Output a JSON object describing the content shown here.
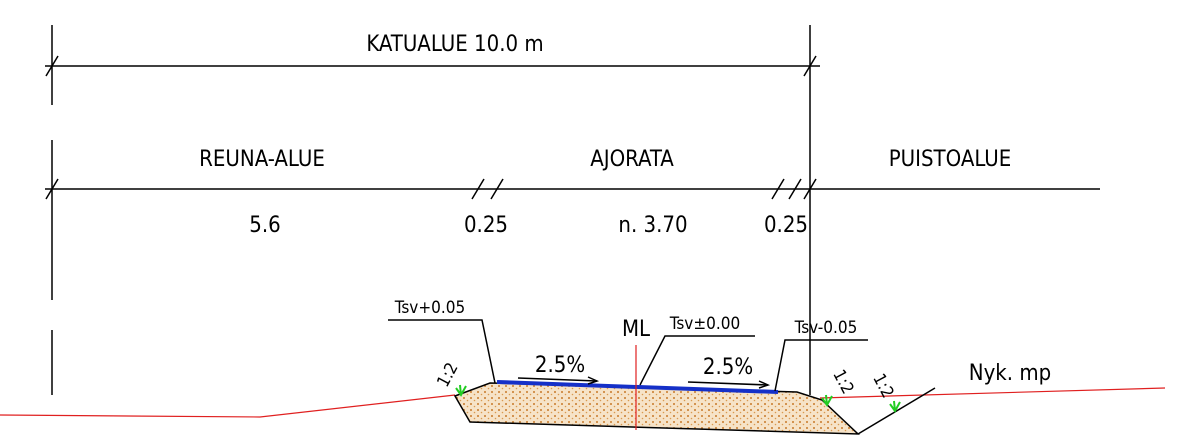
{
  "title": "KATUALUE 10.0 m",
  "zones": [
    "REUNA-ALUE",
    "AJORATA",
    "PUISTOALUE"
  ],
  "dimensions": [
    "5.6",
    "0.25",
    "n. 3.70",
    "0.25"
  ],
  "levels": [
    "Tsv+0.05",
    "Tsv±0.00",
    "Tsv-0.05"
  ],
  "centerline": "ML",
  "slopes": [
    "2.5%",
    "2.5%"
  ],
  "embankment_slopes": [
    "1:2",
    "1:2",
    "1:2"
  ],
  "ground": "Nyk. mp"
}
